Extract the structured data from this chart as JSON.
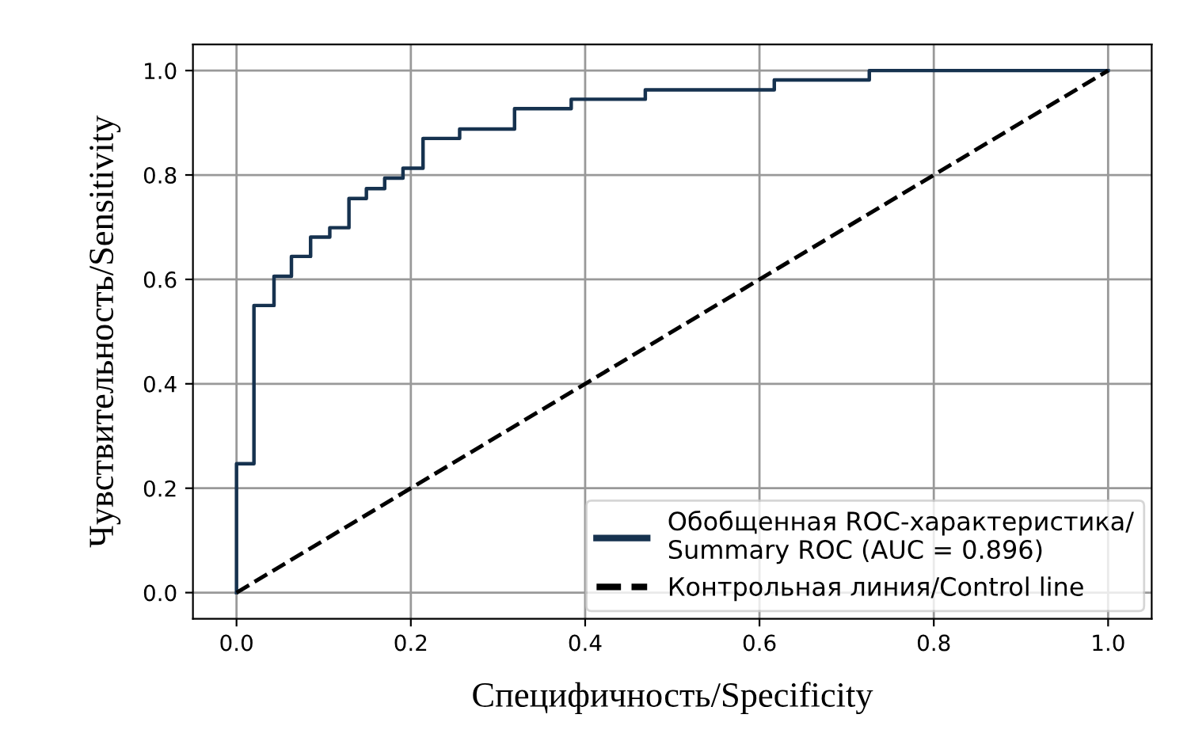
{
  "chart_data": {
    "type": "step",
    "xlabel": "Специфичность/Specificity",
    "ylabel": "Чувствительность/Sensitivity",
    "series": [
      {
        "name": "Обобщенная ROC-характеристика/\nSummary ROC (AUC = 0.896)",
        "color": "#16324f",
        "x": [
          0,
          0,
          0.02,
          0.043,
          0.063,
          0.085,
          0.107,
          0.129,
          0.149,
          0.17,
          0.191,
          0.214,
          0.256,
          0.319,
          0.384,
          0.469,
          0.617,
          0.726,
          1.0
        ],
        "values": [
          0,
          0.247,
          0.55,
          0.606,
          0.644,
          0.681,
          0.699,
          0.755,
          0.774,
          0.794,
          0.813,
          0.87,
          0.888,
          0.927,
          0.945,
          0.963,
          0.982,
          1.0,
          1.0
        ]
      },
      {
        "name": "Контрольная линия/Control line",
        "color": "#000000",
        "type": "line",
        "line_style": "dashed",
        "x": [
          0,
          1
        ],
        "values": [
          0,
          1
        ]
      }
    ],
    "xlim": [
      -0.05,
      1.05
    ],
    "ylim": [
      -0.05,
      1.05
    ],
    "xticks": [
      {
        "value": 0,
        "label": "0.0"
      },
      0.2,
      0.4,
      0.6,
      0.8,
      {
        "value": 1,
        "label": "1.0"
      }
    ],
    "yticks": [
      {
        "value": 0,
        "label": "0.0"
      },
      0.2,
      0.4,
      0.6,
      0.8,
      {
        "value": 1,
        "label": "1.0"
      }
    ],
    "grid": true,
    "legend": "bottom right"
  }
}
